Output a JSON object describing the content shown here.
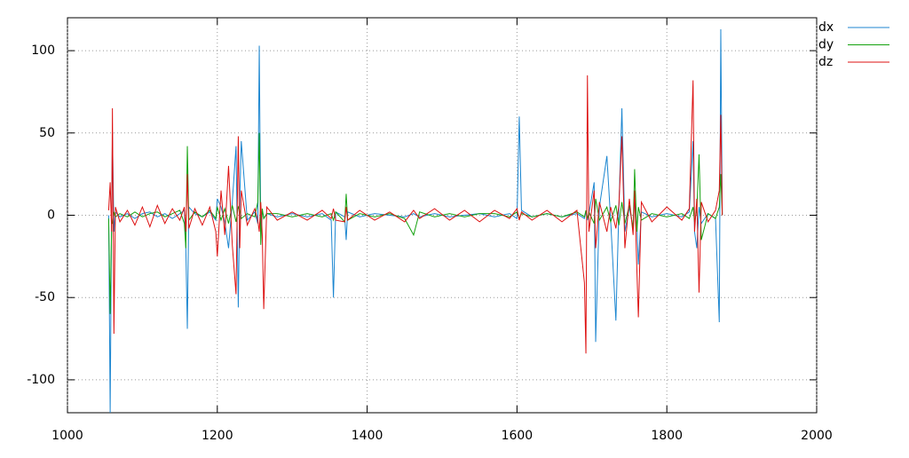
{
  "chart_data": {
    "type": "line",
    "x": [
      1055,
      1057,
      1059,
      1060,
      1062,
      1064,
      1070,
      1080,
      1090,
      1100,
      1110,
      1120,
      1130,
      1140,
      1150,
      1156,
      1158,
      1160,
      1162,
      1170,
      1180,
      1190,
      1198,
      1200,
      1205,
      1210,
      1215,
      1220,
      1225,
      1228,
      1230,
      1232,
      1240,
      1250,
      1254,
      1256,
      1258,
      1260,
      1262,
      1266,
      1280,
      1300,
      1320,
      1340,
      1352,
      1355,
      1358,
      1370,
      1372,
      1374,
      1390,
      1410,
      1430,
      1450,
      1462,
      1470,
      1490,
      1510,
      1530,
      1550,
      1570,
      1590,
      1600,
      1603,
      1606,
      1620,
      1640,
      1660,
      1680,
      1690,
      1692,
      1694,
      1696,
      1703,
      1705,
      1710,
      1720,
      1725,
      1732,
      1736,
      1740,
      1744,
      1750,
      1755,
      1757,
      1760,
      1762,
      1766,
      1780,
      1800,
      1820,
      1830,
      1835,
      1837,
      1840,
      1843,
      1846,
      1855,
      1865,
      1870,
      1872,
      1874
    ],
    "series": [
      {
        "name": "dx",
        "color": "#1c86d0",
        "values": [
          0,
          -120,
          5,
          50,
          -10,
          2,
          -1,
          1,
          -2,
          1,
          2,
          -1,
          1,
          -2,
          1,
          3,
          -20,
          -69,
          5,
          1,
          -1,
          2,
          -3,
          10,
          5,
          -4,
          -20,
          8,
          42,
          -56,
          10,
          45,
          -3,
          2,
          -5,
          103,
          -8,
          3,
          -2,
          1,
          -1,
          1,
          -1,
          1,
          -3,
          -50,
          2,
          -1,
          -15,
          2,
          -1,
          1,
          0,
          -1,
          1,
          -1,
          1,
          -1,
          0,
          1,
          -1,
          1,
          -2,
          60,
          3,
          -1,
          1,
          -1,
          1,
          -2,
          2,
          -3,
          1,
          20,
          -77,
          5,
          36,
          -3,
          -64,
          4,
          65,
          -10,
          5,
          -8,
          10,
          -5,
          -30,
          2,
          -1,
          1,
          -1,
          2,
          45,
          -10,
          -20,
          5,
          -5,
          1,
          -2,
          -65,
          113,
          0
        ]
      },
      {
        "name": "dy",
        "color": "#13a10e",
        "values": [
          -2,
          -60,
          -5,
          -5,
          2,
          -1,
          1,
          -1,
          2,
          -1,
          1,
          2,
          -1,
          1,
          3,
          -5,
          -20,
          42,
          -3,
          2,
          -1,
          3,
          -2,
          5,
          -3,
          4,
          -5,
          6,
          -4,
          5,
          3,
          -2,
          1,
          -1,
          8,
          50,
          -18,
          4,
          -2,
          1,
          1,
          -1,
          1,
          -1,
          1,
          -3,
          2,
          -4,
          13,
          -3,
          1,
          -1,
          1,
          -2,
          -12,
          2,
          -1,
          1,
          -1,
          1,
          1,
          -1,
          2,
          -2,
          1,
          -1,
          1,
          -1,
          2,
          -1,
          3,
          -2,
          2,
          -5,
          10,
          -3,
          5,
          -4,
          6,
          -6,
          8,
          -5,
          6,
          -8,
          28,
          -10,
          5,
          -3,
          1,
          -1,
          1,
          -2,
          5,
          -4,
          3,
          37,
          -15,
          1,
          -2,
          5,
          25,
          0
        ]
      },
      {
        "name": "dz",
        "color": "#dd1111",
        "values": [
          3,
          20,
          -10,
          65,
          -72,
          5,
          -4,
          3,
          -6,
          5,
          -7,
          6,
          -5,
          4,
          -3,
          5,
          -10,
          25,
          -8,
          4,
          -6,
          5,
          -10,
          -25,
          15,
          -12,
          30,
          -18,
          -48,
          48,
          -20,
          15,
          -6,
          4,
          -3,
          -10,
          8,
          -12,
          -57,
          5,
          -3,
          2,
          -3,
          3,
          -2,
          4,
          -3,
          -4,
          5,
          -3,
          3,
          -3,
          2,
          -4,
          3,
          -2,
          4,
          -3,
          3,
          -4,
          3,
          -2,
          4,
          -3,
          2,
          -3,
          3,
          -4,
          3,
          -41,
          -84,
          85,
          -10,
          15,
          -20,
          8,
          -10,
          5,
          -8,
          6,
          48,
          -20,
          10,
          -12,
          15,
          -33,
          -62,
          8,
          -4,
          5,
          -3,
          4,
          82,
          -10,
          10,
          -47,
          8,
          -4,
          3,
          15,
          61,
          0
        ]
      }
    ],
    "xlim": [
      1000,
      2000
    ],
    "xticks": [
      1000,
      1200,
      1400,
      1600,
      1800,
      2000
    ],
    "ylim": [
      -120,
      120
    ],
    "yticks": [
      -100,
      -50,
      0,
      50,
      100
    ],
    "grid": true,
    "legend": "top-right"
  }
}
